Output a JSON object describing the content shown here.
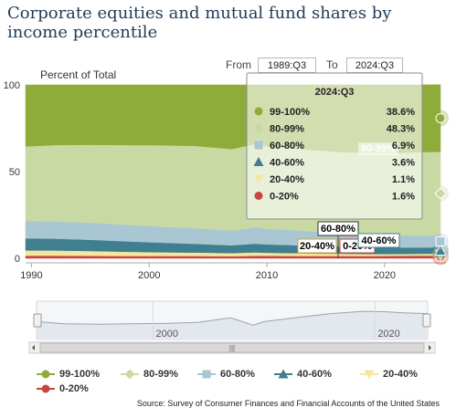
{
  "page": {
    "title": "Corporate equities and mutual fund shares by income percentile",
    "source": "Source: Survey of Consumer Finances and Financial Accounts of the United States"
  },
  "range": {
    "from_label": "From",
    "from_value": "1989:Q3",
    "to_label": "To",
    "to_value": "2024:Q3"
  },
  "navigator": {
    "tick_labels": [
      "2000",
      "2020"
    ]
  },
  "colors": {
    "99-100%": "#8fab3a",
    "80-99%": "#c9d9a4",
    "60-80%": "#a9c6d3",
    "40-60%": "#3f7f8f",
    "20-40%": "#f6e6a0",
    "0-20%": "#c9463d"
  },
  "chart_data": {
    "type": "area",
    "stacked": true,
    "ylabel": "Percent of Total",
    "ylim": [
      0,
      100
    ],
    "yticks": [
      0,
      50,
      100
    ],
    "xlim": [
      1989.5,
      2024.75
    ],
    "xticks": [
      1990,
      2000,
      2010,
      2020
    ],
    "grid": false,
    "legend_position": "bottom",
    "x": [
      1989.5,
      1992,
      1995,
      1998,
      2001,
      2004,
      2007,
      2009,
      2010,
      2013,
      2016,
      2019,
      2021,
      2022.5,
      2024.75
    ],
    "series": [
      {
        "name": "0-20%",
        "values": [
          1.5,
          1.5,
          1.4,
          1.3,
          1.3,
          1.3,
          1.2,
          1.4,
          1.4,
          1.3,
          1.3,
          1.3,
          1.4,
          1.5,
          1.6
        ]
      },
      {
        "name": "20-40%",
        "values": [
          3.0,
          3.0,
          2.8,
          2.5,
          2.2,
          2.0,
          1.8,
          2.0,
          1.8,
          1.6,
          1.4,
          1.2,
          1.1,
          1.1,
          1.1
        ]
      },
      {
        "name": "40-60%",
        "values": [
          7.0,
          6.8,
          6.5,
          6.0,
          5.5,
          5.0,
          4.5,
          5.0,
          4.8,
          4.5,
          4.2,
          4.0,
          3.7,
          3.6,
          3.6
        ]
      },
      {
        "name": "60-80%",
        "values": [
          10.0,
          10.0,
          9.8,
          9.5,
          9.2,
          9.0,
          8.5,
          9.5,
          9.0,
          8.5,
          8.0,
          7.5,
          7.0,
          6.9,
          6.9
        ]
      },
      {
        "name": "80-99%",
        "values": [
          43.0,
          44.0,
          45.0,
          46.0,
          47.0,
          47.5,
          47.0,
          48.0,
          47.5,
          47.0,
          46.5,
          46.5,
          47.5,
          48.0,
          48.3
        ]
      },
      {
        "name": "99-100%",
        "values": [
          35.5,
          34.7,
          34.5,
          34.7,
          34.8,
          35.2,
          37.0,
          34.1,
          35.5,
          37.1,
          38.6,
          39.5,
          39.3,
          38.9,
          38.6
        ]
      }
    ],
    "tooltip": {
      "title": "2024:Q3",
      "rows": [
        {
          "name": "99-100%",
          "value": "38.6%"
        },
        {
          "name": "80-99%",
          "value": "48.3%"
        },
        {
          "name": "60-80%",
          "value": "6.9%"
        },
        {
          "name": "40-60%",
          "value": "3.6%"
        },
        {
          "name": "20-40%",
          "value": "1.1%"
        },
        {
          "name": "0-20%",
          "value": "1.6%"
        }
      ]
    },
    "annotations": [
      "80-99%",
      "60-80%",
      "20-40%",
      "0-20%",
      "40-60%"
    ]
  },
  "legend": [
    {
      "name": "99-100%",
      "marker": "circle"
    },
    {
      "name": "80-99%",
      "marker": "diamond"
    },
    {
      "name": "60-80%",
      "marker": "square"
    },
    {
      "name": "40-60%",
      "marker": "triangle"
    },
    {
      "name": "20-40%",
      "marker": "triangle-down"
    },
    {
      "name": "0-20%",
      "marker": "circle"
    }
  ]
}
